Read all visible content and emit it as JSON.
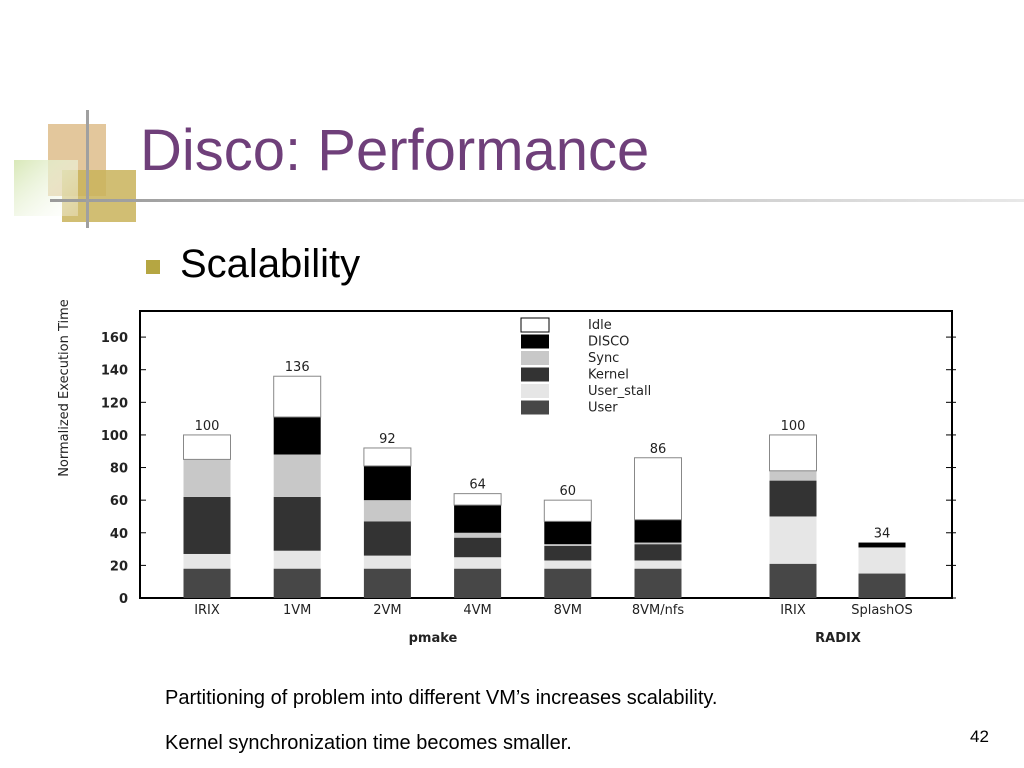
{
  "slide_title": "Disco: Performance",
  "bullet": "Scalability",
  "captions": [
    "Partitioning of problem into different VM’s increases scalability.",
    "Kernel synchronization time becomes smaller."
  ],
  "page_number": "42",
  "chart_data": {
    "type": "stacked_bar",
    "y_label": "Normalized Execution Time",
    "categories": [
      "IRIX",
      "1VM",
      "2VM",
      "4VM",
      "8VM",
      "8VM/nfs",
      "IRIX",
      "SplashOS"
    ],
    "groups": [
      "pmake",
      "RADIX"
    ],
    "series": [
      {
        "name": "User",
        "color": "#474747",
        "values": [
          18,
          18,
          18,
          18,
          18,
          18,
          21,
          15
        ]
      },
      {
        "name": "User_stall",
        "color": "#e6e6e6",
        "values": [
          9,
          11,
          8,
          7,
          5,
          5,
          29,
          16
        ]
      },
      {
        "name": "Kernel",
        "color": "#333333",
        "values": [
          35,
          33,
          21,
          12,
          9,
          10,
          22,
          0
        ]
      },
      {
        "name": "Sync",
        "color": "#c8c8c8",
        "values": [
          23,
          26,
          13,
          3,
          1,
          1,
          6,
          0
        ]
      },
      {
        "name": "DISCO",
        "color": "#000000",
        "values": [
          0,
          23,
          21,
          17,
          14,
          14,
          0,
          3
        ]
      },
      {
        "name": "Idle",
        "color": "#ffffff",
        "values": [
          15,
          25,
          11,
          7,
          13,
          38,
          22,
          0
        ]
      }
    ],
    "totals": [
      100,
      136,
      92,
      64,
      60,
      86,
      100,
      34
    ],
    "ylim": [
      0,
      176
    ],
    "yticks": [
      0,
      20,
      40,
      60,
      80,
      100,
      120,
      140,
      160
    ]
  }
}
